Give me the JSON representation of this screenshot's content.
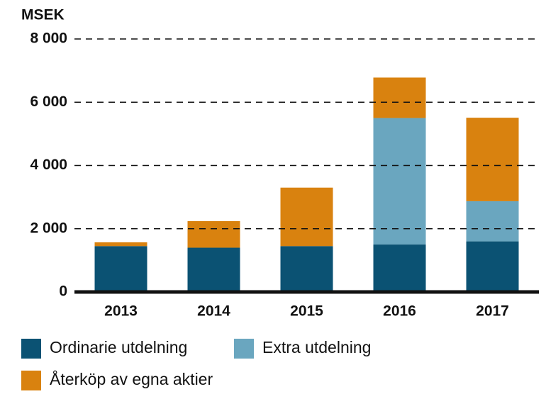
{
  "chart_data": {
    "type": "bar",
    "stacked": true,
    "y_axis_label": "MSEK",
    "categories": [
      "2013",
      "2014",
      "2015",
      "2016",
      "2017"
    ],
    "series": [
      {
        "name": "Ordinarie utdelning",
        "color": "#0b5273",
        "values": [
          1450,
          1400,
          1450,
          1500,
          1600
        ]
      },
      {
        "name": "Extra utdelning",
        "color": "#6aa6bf",
        "values": [
          0,
          0,
          0,
          4000,
          1270
        ]
      },
      {
        "name": "Återköp av egna aktier",
        "color": "#d9820f",
        "values": [
          120,
          840,
          1850,
          1280,
          2640
        ]
      }
    ],
    "ylim": [
      0,
      8000
    ],
    "yticks": [
      {
        "value": 0,
        "label": "0"
      },
      {
        "value": 2000,
        "label": "2 000"
      },
      {
        "value": 4000,
        "label": "4 000"
      },
      {
        "value": 6000,
        "label": "6 000"
      },
      {
        "value": 8000,
        "label": "8 000"
      }
    ],
    "grid": true
  }
}
